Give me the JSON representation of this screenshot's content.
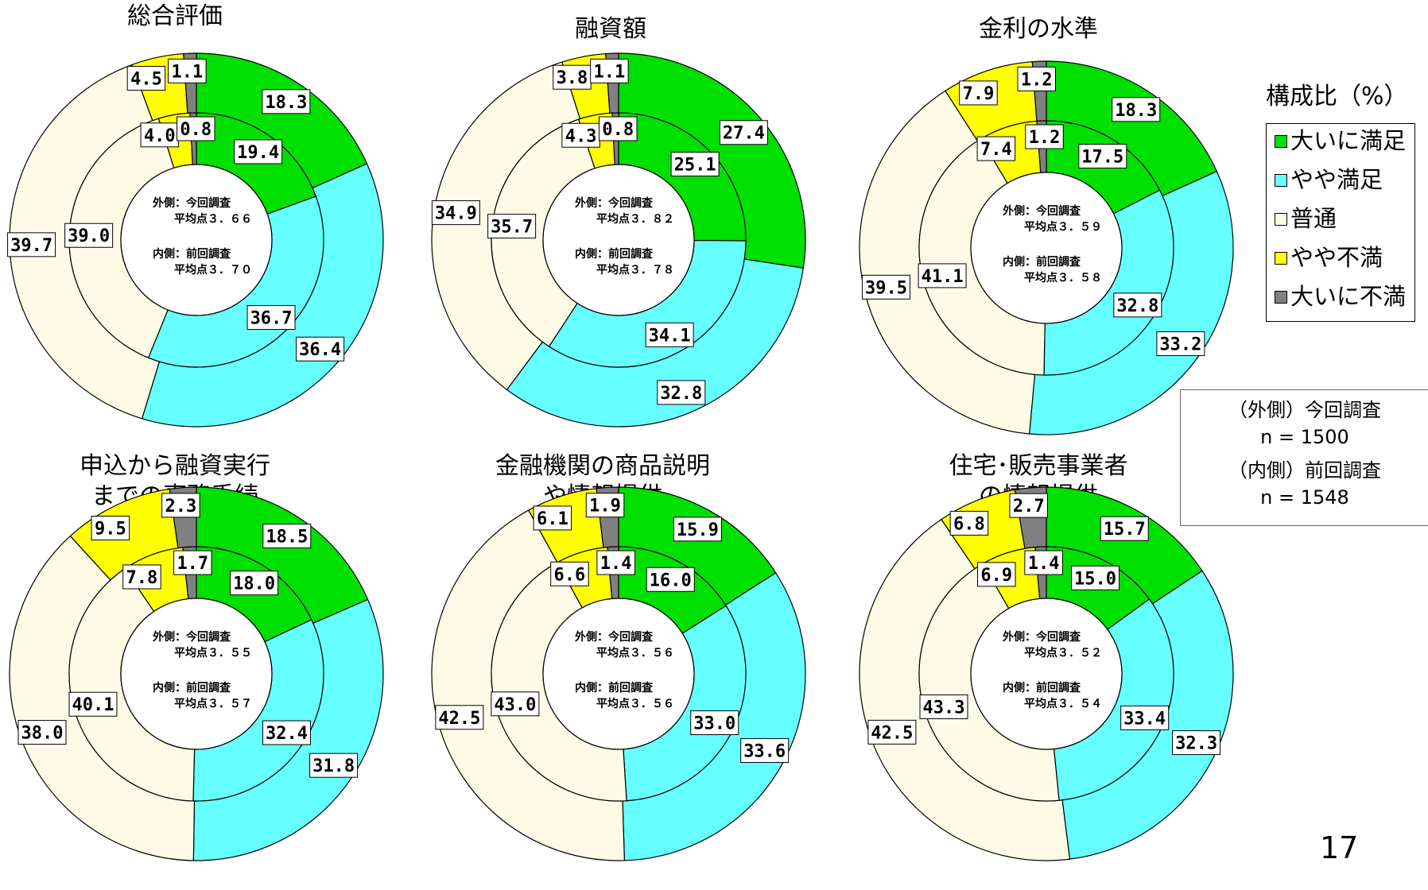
{
  "chart_data": [
    {
      "type": "pie",
      "title": "総合評価",
      "note": [
        "外側：今回調査",
        "平均点３．６６",
        "内側：前回調査",
        "平均点３．７０"
      ],
      "outer": [
        18.3,
        36.4,
        39.7,
        4.5,
        1.1
      ],
      "inner": [
        19.4,
        36.7,
        39.0,
        4.0,
        0.8
      ]
    },
    {
      "type": "pie",
      "title": "融資額",
      "note": [
        "外側：今回調査",
        "平均点３．８２",
        "内側：前回調査",
        "平均点３．７８"
      ],
      "outer": [
        27.4,
        32.8,
        34.9,
        3.8,
        1.1
      ],
      "inner": [
        25.1,
        34.1,
        35.7,
        4.3,
        0.8
      ]
    },
    {
      "type": "pie",
      "title": "金利の水準",
      "note": [
        "外側：今回調査",
        "平均点３．５９",
        "内側：前回調査",
        "平均点３．５８"
      ],
      "outer": [
        18.3,
        33.2,
        39.5,
        7.9,
        1.2
      ],
      "inner": [
        17.5,
        32.8,
        41.1,
        7.4,
        1.2
      ]
    },
    {
      "type": "pie",
      "title": "申込から融資実行\nまでの事務手続",
      "note": [
        "外側：今回調査",
        "平均点３．５５",
        "内側：前回調査",
        "平均点３．５７"
      ],
      "outer": [
        18.5,
        31.8,
        38.0,
        9.5,
        2.3
      ],
      "inner": [
        18.0,
        32.4,
        40.1,
        7.8,
        1.7
      ]
    },
    {
      "type": "pie",
      "title": "金融機関の商品説明\nや情報提供",
      "note": [
        "外側：今回調査",
        "平均点３．５６",
        "内側：前回調査",
        "平均点３．５６"
      ],
      "outer": [
        15.9,
        33.6,
        42.5,
        6.1,
        1.9
      ],
      "inner": [
        16.0,
        33.0,
        43.0,
        6.6,
        1.4
      ]
    },
    {
      "type": "pie",
      "title": "住宅･販売事業者\nの情報提供",
      "note": [
        "外側：今回調査",
        "平均点３．５２",
        "内側：前回調査",
        "平均点３．５４"
      ],
      "outer": [
        15.7,
        32.3,
        42.5,
        6.8,
        2.7
      ],
      "inner": [
        15.0,
        33.4,
        43.3,
        6.9,
        1.4
      ]
    }
  ],
  "legend": {
    "title": "構成比（%）",
    "items": [
      {
        "label": "大いに満足",
        "color": "#00e000"
      },
      {
        "label": "やや満足",
        "color": "#66ffff"
      },
      {
        "label": "普通",
        "color": "#fdfbe6"
      },
      {
        "label": "やや不満",
        "color": "#ffff00"
      },
      {
        "label": "大いに不満",
        "color": "#808080"
      }
    ]
  },
  "sample_box": {
    "outer_label": "（外側）今回調査",
    "outer_n": "n = 1500",
    "inner_label": "（内側）前回調査",
    "inner_n": "n = 1548"
  },
  "page_number": "17"
}
